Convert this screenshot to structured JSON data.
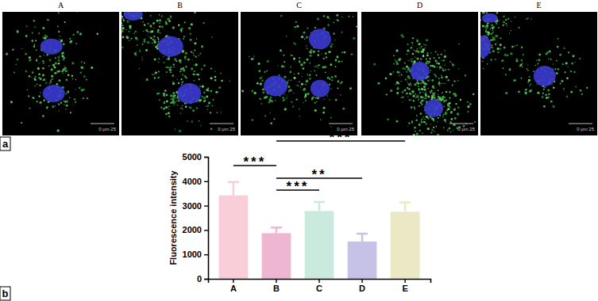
{
  "figure": {
    "panel_labels": [
      "a",
      "b"
    ],
    "image_titles": [
      "A",
      "B",
      "C",
      "D",
      "E"
    ],
    "scale_bar_label": "0 μm 25"
  },
  "chart_data": {
    "type": "bar",
    "y_label": "Fluorescence intensity",
    "categories": [
      "A",
      "B",
      "C",
      "D",
      "E"
    ],
    "values": [
      3420,
      1870,
      2780,
      1530,
      2750
    ],
    "errors": [
      550,
      230,
      370,
      320,
      380
    ],
    "colors": [
      "#f9ced8",
      "#efb6d2",
      "#c9eadc",
      "#c6c1e6",
      "#ebe8c6"
    ],
    "ylim": [
      0,
      5000
    ],
    "yticks": [
      0,
      1000,
      2000,
      3000,
      4000,
      5000
    ],
    "grid": false,
    "annotations": [
      {
        "from": "B",
        "to": "E",
        "label": "***"
      },
      {
        "from": "A",
        "to": "B",
        "label": "***"
      },
      {
        "from": "B",
        "to": "D",
        "label": "**"
      },
      {
        "from": "B",
        "to": "C",
        "label": "***"
      }
    ]
  }
}
